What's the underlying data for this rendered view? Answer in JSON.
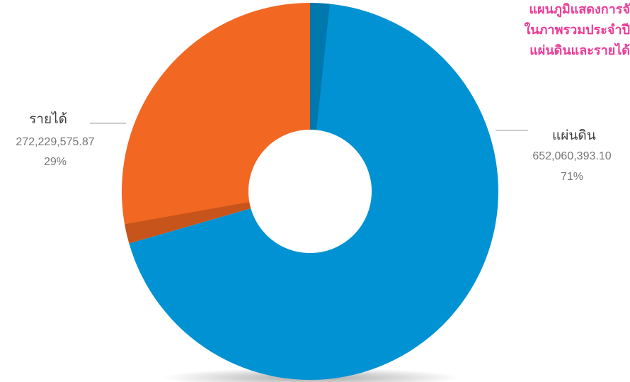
{
  "chart_data": {
    "type": "pie",
    "style": "donut",
    "title_lines": [
      "แผนภูมิแสดงการจั",
      "ในภาพรวมประจำปี",
      "แผ่นดินและรายได้"
    ],
    "categories": [
      "แผ่นดิน",
      "รายได้"
    ],
    "values": [
      652060393.1,
      272229575.87
    ],
    "value_labels": [
      "652,060,393.10",
      "272,229,575.87"
    ],
    "percent_labels": [
      "71%",
      "29%"
    ],
    "colors": [
      "#0092d3",
      "#f26722"
    ],
    "title_color": "#ec3b97",
    "label_color": "#767676",
    "category_color": "#404040",
    "leader_color": "#9a9a9a"
  }
}
